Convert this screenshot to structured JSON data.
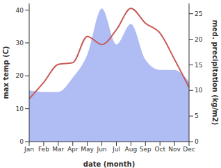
{
  "chart_data": {
    "type": "line",
    "xlabel": "date (month)",
    "categories": [
      "Jan",
      "Feb",
      "Mar",
      "Apr",
      "May",
      "Jun",
      "Jul",
      "Aug",
      "Sep",
      "Oct",
      "Nov",
      "Dec"
    ],
    "series": [
      {
        "name": "max temp (C)",
        "type": "line",
        "color": "#c85a5a",
        "values": [
          13,
          18,
          23.5,
          24,
          32,
          29.5,
          34,
          40.5,
          36,
          33,
          25,
          16.5
        ]
      },
      {
        "name": "med. precipitation (kg/m2)",
        "type": "area",
        "axis": "y2",
        "color": "#b0bdf4",
        "values": [
          10,
          9.7,
          9.7,
          12.5,
          17,
          26,
          19,
          23,
          16,
          14,
          14,
          11.7
        ]
      }
    ],
    "ylabel": "max temp (C)",
    "y2label": "med. precipitation (kg/m2)",
    "ylim": [
      0,
      42
    ],
    "yticks": [
      0,
      10,
      20,
      30,
      40
    ],
    "y2lim": [
      0,
      27
    ],
    "y2ticks": [
      0,
      5,
      10,
      15,
      20,
      25
    ],
    "grid": false
  }
}
